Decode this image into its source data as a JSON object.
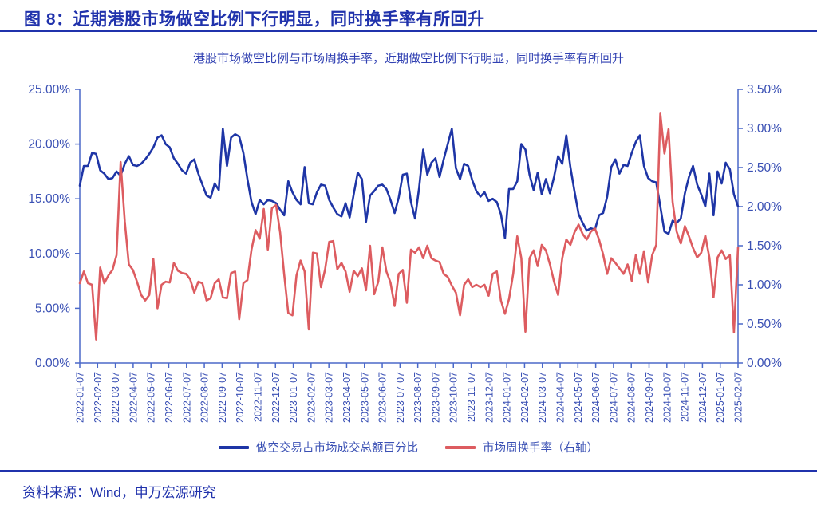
{
  "figure": {
    "title": "图 8：近期港股市场做空比例下行明显，同时换手率有所回升"
  },
  "source": {
    "label": "资料来源：Wind，申万宏源研究"
  },
  "colors": {
    "accent_blue": "#2032ac",
    "axis_label_blue": "#3a50b4",
    "axis_line_blue": "#4b69c9",
    "subtitle_blue": "#3040b2",
    "series_blue": "#1e35a6",
    "series_red": "#dd5c60"
  },
  "chart_data": {
    "type": "line",
    "title": "港股市场做空比例与市场周换手率，近期做空比例下行明显，同时换手率有所回升",
    "x_frequency": "weekly",
    "x_points": 162,
    "x_tick_labels": [
      "2022-01-07",
      "2022-02-07",
      "2022-03-07",
      "2022-04-07",
      "2022-05-07",
      "2022-06-07",
      "2022-07-07",
      "2022-08-07",
      "2022-09-07",
      "2022-10-07",
      "2022-11-07",
      "2022-12-07",
      "2023-01-07",
      "2023-02-07",
      "2023-03-07",
      "2023-04-07",
      "2023-05-07",
      "2023-06-07",
      "2023-07-07",
      "2023-08-07",
      "2023-09-07",
      "2023-10-07",
      "2023-11-07",
      "2023-12-07",
      "2024-01-07",
      "2024-02-07",
      "2024-03-07",
      "2024-04-07",
      "2024-05-07",
      "2024-06-07",
      "2024-07-07",
      "2024-08-07",
      "2024-09-07",
      "2024-10-07",
      "2024-11-07",
      "2024-12-07",
      "2025-01-07",
      "2025-02-07"
    ],
    "left_axis": {
      "min": 0,
      "max": 25,
      "tick_values": [
        0,
        5,
        10,
        15,
        20,
        25
      ],
      "tick_labels": [
        "0.00%",
        "5.00%",
        "10.00%",
        "15.00%",
        "20.00%",
        "25.00%"
      ]
    },
    "right_axis": {
      "min": 0,
      "max": 3.5,
      "tick_values": [
        0,
        0.5,
        1,
        1.5,
        2,
        2.5,
        3,
        3.5
      ],
      "tick_labels": [
        "0.00%",
        "0.50%",
        "1.00%",
        "1.50%",
        "2.00%",
        "2.50%",
        "3.00%",
        "3.50%"
      ]
    },
    "grid": false,
    "legend_position": "bottom",
    "series": [
      {
        "name": "做空交易占市场成交总额百分比",
        "axis": "left",
        "color": "#1e35a6",
        "values": [
          16.2,
          18.0,
          18.0,
          19.2,
          19.1,
          17.6,
          17.3,
          16.8,
          16.9,
          17.5,
          17.1,
          18.2,
          18.9,
          18.1,
          18.0,
          18.2,
          18.6,
          19.1,
          19.7,
          20.6,
          20.8,
          20.0,
          19.7,
          18.7,
          18.2,
          17.6,
          17.3,
          18.3,
          18.6,
          17.3,
          16.3,
          15.3,
          15.1,
          16.4,
          15.8,
          21.4,
          18.0,
          20.6,
          20.9,
          20.7,
          19.2,
          16.8,
          14.7,
          13.6,
          14.9,
          14.5,
          14.9,
          14.8,
          14.6,
          14.0,
          13.5,
          16.6,
          15.6,
          14.9,
          14.5,
          17.9,
          14.6,
          14.5,
          15.6,
          16.3,
          16.2,
          14.9,
          14.2,
          13.6,
          13.4,
          14.6,
          13.3,
          15.4,
          17.4,
          16.8,
          12.9,
          15.3,
          15.7,
          16.2,
          16.3,
          15.9,
          14.9,
          13.7,
          15.1,
          17.2,
          17.3,
          14.7,
          13.2,
          16.0,
          19.5,
          17.2,
          18.3,
          18.7,
          17.0,
          18.6,
          20.0,
          21.4,
          17.8,
          16.8,
          18.2,
          18.0,
          16.7,
          15.7,
          15.2,
          15.6,
          14.8,
          15.0,
          14.7,
          13.6,
          11.4,
          15.9,
          15.9,
          16.6,
          20.0,
          19.5,
          17.2,
          15.8,
          17.4,
          15.4,
          16.8,
          15.5,
          17.0,
          18.9,
          18.2,
          20.8,
          17.9,
          15.7,
          13.6,
          12.8,
          12.1,
          12.3,
          12.2,
          13.5,
          13.7,
          15.2,
          17.9,
          18.6,
          17.3,
          18.1,
          18.0,
          19.2,
          20.2,
          20.8,
          18.0,
          16.9,
          16.6,
          16.5,
          14.3,
          12.0,
          11.8,
          13.0,
          12.8,
          13.2,
          15.5,
          17.0,
          18.0,
          16.3,
          15.4,
          14.3,
          17.3,
          13.5,
          17.5,
          16.4,
          18.3,
          17.7,
          15.4,
          14.3
        ]
      },
      {
        "name": "市场周换手率（右轴）",
        "axis": "right",
        "color": "#dd5c60",
        "values": [
          1.02,
          1.17,
          1.02,
          1.0,
          0.3,
          1.22,
          1.02,
          1.12,
          1.19,
          1.38,
          2.57,
          1.81,
          1.26,
          1.19,
          1.04,
          0.87,
          0.8,
          0.87,
          1.33,
          0.7,
          1.0,
          1.04,
          1.03,
          1.28,
          1.18,
          1.15,
          1.14,
          1.07,
          0.9,
          1.04,
          1.02,
          0.8,
          0.83,
          1.02,
          1.07,
          0.84,
          0.83,
          1.15,
          1.17,
          0.56,
          1.02,
          1.06,
          1.45,
          1.7,
          1.59,
          1.97,
          1.45,
          1.98,
          2.02,
          1.67,
          1.13,
          0.64,
          0.61,
          1.12,
          1.31,
          1.17,
          0.43,
          1.41,
          1.4,
          0.97,
          1.2,
          1.55,
          1.56,
          1.2,
          1.28,
          1.17,
          0.91,
          1.18,
          1.11,
          1.21,
          0.93,
          1.5,
          0.88,
          1.04,
          1.48,
          1.17,
          1.03,
          0.73,
          1.14,
          1.19,
          0.77,
          1.45,
          1.41,
          1.48,
          1.34,
          1.5,
          1.34,
          1.31,
          1.29,
          1.14,
          1.1,
          0.99,
          0.9,
          0.61,
          1.0,
          1.07,
          0.97,
          1.0,
          0.97,
          1.0,
          0.86,
          1.14,
          1.17,
          0.8,
          0.63,
          0.82,
          1.14,
          1.62,
          1.34,
          0.4,
          1.34,
          1.44,
          1.24,
          1.51,
          1.44,
          1.26,
          1.04,
          0.87,
          1.34,
          1.58,
          1.51,
          1.67,
          1.77,
          1.65,
          1.58,
          1.68,
          1.72,
          1.58,
          1.39,
          1.14,
          1.34,
          1.28,
          1.21,
          1.14,
          1.26,
          1.05,
          1.38,
          1.14,
          1.43,
          1.03,
          1.38,
          1.51,
          3.19,
          2.68,
          2.99,
          2.06,
          1.68,
          1.53,
          1.75,
          1.62,
          1.47,
          1.35,
          1.41,
          1.63,
          1.35,
          0.84,
          1.35,
          1.44,
          1.33,
          1.38,
          0.39,
          1.48
        ]
      }
    ]
  }
}
